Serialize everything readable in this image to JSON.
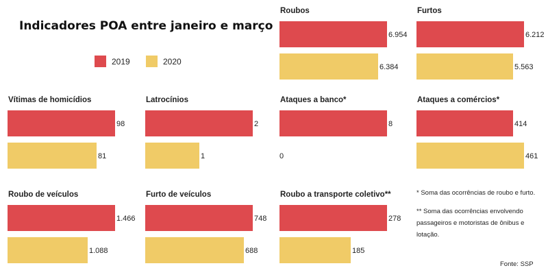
{
  "title": "Indicadores POA entre janeiro e março",
  "legend": [
    {
      "label": "2019",
      "color": "#de4a4e"
    },
    {
      "label": "2020",
      "color": "#f0cb67"
    }
  ],
  "footnotes": {
    "note1": "* Soma das ocorrências de roubo e furto.",
    "note2_line1": "** Soma das ocorrências envolvendo",
    "note2_line2": "passageiros e motoristas de ônibus e lotação."
  },
  "source": "Fonte: SSP",
  "chart_data": [
    {
      "type": "bar",
      "title": "Roubos",
      "series": [
        {
          "name": "2019",
          "value": 6954,
          "label": "6.954"
        },
        {
          "name": "2020",
          "value": 6384,
          "label": "6.384"
        }
      ]
    },
    {
      "type": "bar",
      "title": "Furtos",
      "series": [
        {
          "name": "2019",
          "value": 6212,
          "label": "6.212"
        },
        {
          "name": "2020",
          "value": 5563,
          "label": "5.563"
        }
      ]
    },
    {
      "type": "bar",
      "title": "Vítimas de homicídios",
      "series": [
        {
          "name": "2019",
          "value": 98,
          "label": "98"
        },
        {
          "name": "2020",
          "value": 81,
          "label": "81"
        }
      ]
    },
    {
      "type": "bar",
      "title": "Latrocínios",
      "series": [
        {
          "name": "2019",
          "value": 2,
          "label": "2"
        },
        {
          "name": "2020",
          "value": 1,
          "label": "1"
        }
      ]
    },
    {
      "type": "bar",
      "title": "Ataques a banco*",
      "series": [
        {
          "name": "2019",
          "value": 8,
          "label": "8"
        },
        {
          "name": "2020",
          "value": 0,
          "label": "0"
        }
      ]
    },
    {
      "type": "bar",
      "title": "Ataques a comércios*",
      "series": [
        {
          "name": "2019",
          "value": 414,
          "label": "414"
        },
        {
          "name": "2020",
          "value": 461,
          "label": "461"
        }
      ]
    },
    {
      "type": "bar",
      "title": "Roubo de veículos",
      "series": [
        {
          "name": "2019",
          "value": 1466,
          "label": "1.466"
        },
        {
          "name": "2020",
          "value": 1088,
          "label": "1.088"
        }
      ]
    },
    {
      "type": "bar",
      "title": "Furto de veículos",
      "series": [
        {
          "name": "2019",
          "value": 748,
          "label": "748"
        },
        {
          "name": "2020",
          "value": 688,
          "label": "688"
        }
      ]
    },
    {
      "type": "bar",
      "title": "Roubo a transporte coletivo**",
      "series": [
        {
          "name": "2019",
          "value": 278,
          "label": "278"
        },
        {
          "name": "2020",
          "value": 185,
          "label": "185"
        }
      ]
    }
  ]
}
